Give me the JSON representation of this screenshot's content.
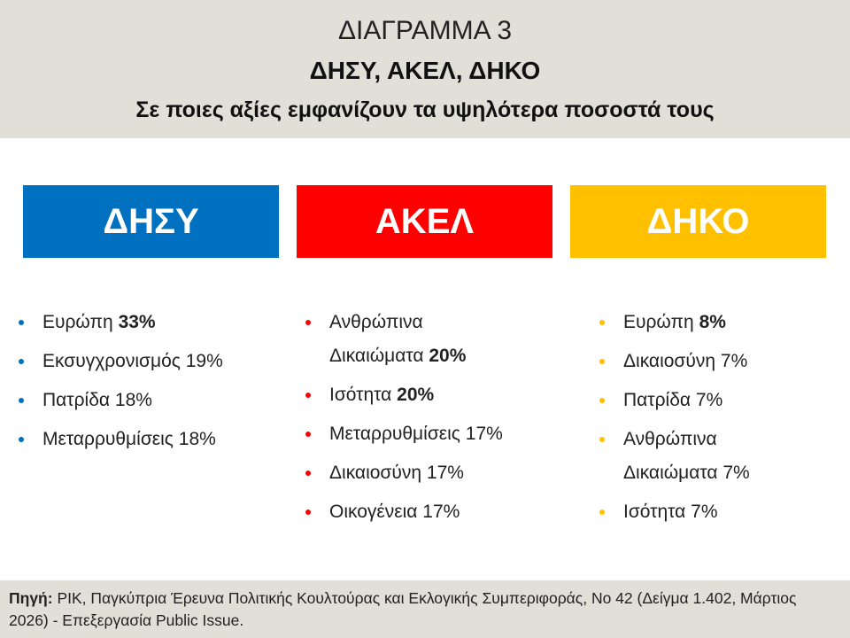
{
  "header": {
    "title": "ΔΙΑΓΡΑΜΜΑ 3",
    "subtitle": "ΔΗΣΥ, ΑΚΕΛ, ΔΗΚΟ",
    "description": "Σε ποιες αξίες εμφανίζουν τα υψηλότερα ποσοστά τους"
  },
  "columns": [
    {
      "party": "ΔΗΣΥ",
      "color": "#0070c0",
      "items": [
        {
          "label": "Ευρώπη",
          "value": "33%",
          "bold": true
        },
        {
          "label": "Εκσυγχρονισμός",
          "value": "19%",
          "bold": false
        },
        {
          "label": "Πατρίδα",
          "value": "18%",
          "bold": false
        },
        {
          "label": "Μεταρρυθμίσεις",
          "value": "18%",
          "bold": false
        }
      ]
    },
    {
      "party": "ΑΚΕΛ",
      "color": "#ff0000",
      "items": [
        {
          "label": "Ανθρώπινα Δικαιώματα",
          "value": "20%",
          "bold": true
        },
        {
          "label": "Ισότητα",
          "value": "20%",
          "bold": true
        },
        {
          "label": "Μεταρρυθμίσεις",
          "value": "17%",
          "bold": false
        },
        {
          "label": "Δικαιοσύνη",
          "value": "17%",
          "bold": false
        },
        {
          "label": "Οικογένεια",
          "value": "17%",
          "bold": false
        }
      ]
    },
    {
      "party": "ΔΗΚΟ",
      "color": "#ffc000",
      "items": [
        {
          "label": "Ευρώπη",
          "value": "8%",
          "bold": true
        },
        {
          "label": "Δικαιοσύνη",
          "value": "7%",
          "bold": false
        },
        {
          "label": "Πατρίδα",
          "value": "7%",
          "bold": false
        },
        {
          "label": "Ανθρώπινα Δικαιώματα",
          "value": "7%",
          "bold": false
        },
        {
          "label": "Ισότητα",
          "value": "7%",
          "bold": false
        }
      ]
    }
  ],
  "footer": {
    "source_label": "Πηγή:",
    "source_text": "ΡΙΚ, Παγκύπρια Έρευνα Πολιτικής Κουλτούρας και Εκλογικής Συμπεριφοράς, Νο 42 (Δείγμα 1.402, Μάρτιος 2026) - Επεξεργασία Public Issue."
  }
}
